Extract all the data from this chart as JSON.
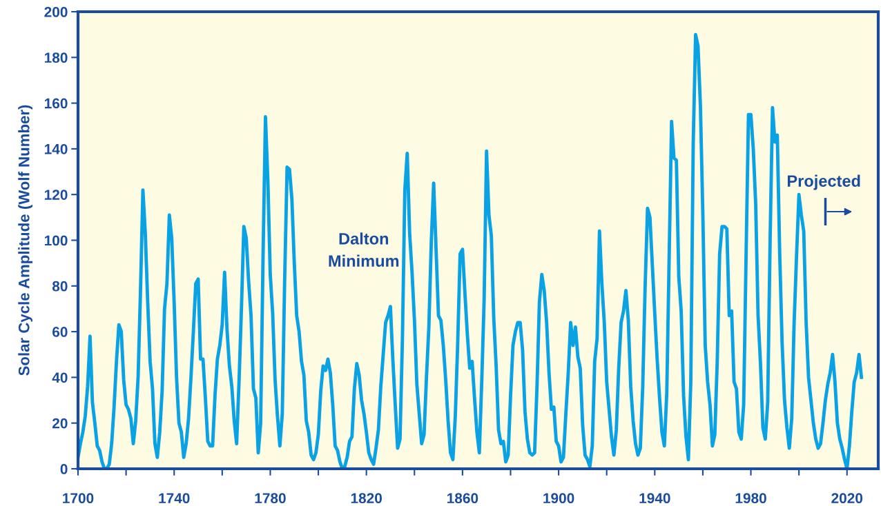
{
  "chart_data": {
    "type": "line",
    "ylabel": "Solar Cycle Amplitude (Wolf Number)",
    "x": [
      1700,
      1701,
      1702,
      1703,
      1704,
      1705,
      1706,
      1707,
      1708,
      1709,
      1710,
      1711,
      1712,
      1713,
      1714,
      1715,
      1716,
      1717,
      1718,
      1719,
      1720,
      1721,
      1722,
      1723,
      1724,
      1725,
      1726,
      1727,
      1728,
      1729,
      1730,
      1731,
      1732,
      1733,
      1734,
      1735,
      1736,
      1737,
      1738,
      1739,
      1740,
      1741,
      1742,
      1743,
      1744,
      1745,
      1746,
      1747,
      1748,
      1749,
      1750,
      1751,
      1752,
      1753,
      1754,
      1755,
      1756,
      1757,
      1758,
      1759,
      1760,
      1761,
      1762,
      1763,
      1764,
      1765,
      1766,
      1767,
      1768,
      1769,
      1770,
      1771,
      1772,
      1773,
      1774,
      1775,
      1776,
      1777,
      1778,
      1779,
      1780,
      1781,
      1782,
      1783,
      1784,
      1785,
      1786,
      1787,
      1788,
      1789,
      1790,
      1791,
      1792,
      1793,
      1794,
      1795,
      1796,
      1797,
      1798,
      1799,
      1800,
      1801,
      1802,
      1803,
      1804,
      1805,
      1806,
      1807,
      1808,
      1809,
      1810,
      1811,
      1812,
      1813,
      1814,
      1815,
      1816,
      1817,
      1818,
      1819,
      1820,
      1821,
      1822,
      1823,
      1824,
      1825,
      1826,
      1827,
      1828,
      1829,
      1830,
      1831,
      1832,
      1833,
      1834,
      1835,
      1836,
      1837,
      1838,
      1839,
      1840,
      1841,
      1842,
      1843,
      1844,
      1845,
      1846,
      1847,
      1848,
      1849,
      1850,
      1851,
      1852,
      1853,
      1854,
      1855,
      1856,
      1857,
      1858,
      1859,
      1860,
      1861,
      1862,
      1863,
      1864,
      1865,
      1866,
      1867,
      1868,
      1869,
      1870,
      1871,
      1872,
      1873,
      1874,
      1875,
      1876,
      1877,
      1878,
      1879,
      1880,
      1881,
      1882,
      1883,
      1884,
      1885,
      1886,
      1887,
      1888,
      1889,
      1890,
      1891,
      1892,
      1893,
      1894,
      1895,
      1896,
      1897,
      1898,
      1899,
      1900,
      1901,
      1902,
      1903,
      1904,
      1905,
      1906,
      1907,
      1908,
      1909,
      1910,
      1911,
      1912,
      1913,
      1914,
      1915,
      1916,
      1917,
      1918,
      1919,
      1920,
      1921,
      1922,
      1923,
      1924,
      1925,
      1926,
      1927,
      1928,
      1929,
      1930,
      1931,
      1932,
      1933,
      1934,
      1935,
      1936,
      1937,
      1938,
      1939,
      1940,
      1941,
      1942,
      1943,
      1944,
      1945,
      1946,
      1947,
      1948,
      1949,
      1950,
      1951,
      1952,
      1953,
      1954,
      1955,
      1956,
      1957,
      1958,
      1959,
      1960,
      1961,
      1962,
      1963,
      1964,
      1965,
      1966,
      1967,
      1968,
      1969,
      1970,
      1971,
      1972,
      1973,
      1974,
      1975,
      1976,
      1977,
      1978,
      1979,
      1980,
      1981,
      1982,
      1983,
      1984,
      1985,
      1986,
      1987,
      1988,
      1989,
      1990,
      1991,
      1992,
      1993,
      1994,
      1995,
      1996,
      1997,
      1998,
      1999,
      2000,
      2001,
      2002,
      2003,
      2004,
      2005,
      2006,
      2007,
      2008,
      2009,
      2010,
      2011,
      2012,
      2013,
      2014,
      2015,
      2016,
      2017,
      2018,
      2019,
      2020,
      2021,
      2022,
      2023,
      2024,
      2025,
      2026
    ],
    "series": [
      {
        "color": "#0aa2e2",
        "values": [
          5,
          11,
          16,
          23,
          36,
          58,
          29,
          20,
          10,
          8,
          3,
          0,
          0,
          2,
          11,
          27,
          47,
          63,
          60,
          39,
          28,
          26,
          22,
          11,
          21,
          40,
          78,
          122,
          103,
          73,
          47,
          35,
          11,
          5,
          16,
          34,
          70,
          81,
          111,
          101,
          73,
          40,
          20,
          16,
          5,
          11,
          22,
          40,
          60,
          81,
          83,
          48,
          48,
          31,
          12,
          10,
          10,
          32,
          48,
          54,
          63,
          86,
          61,
          45,
          36,
          21,
          11,
          38,
          70,
          106,
          101,
          82,
          67,
          35,
          31,
          7,
          20,
          93,
          154,
          126,
          85,
          68,
          39,
          23,
          10,
          24,
          83,
          132,
          131,
          118,
          90,
          67,
          60,
          47,
          41,
          21,
          16,
          6,
          4,
          7,
          15,
          34,
          45,
          43,
          48,
          42,
          28,
          10,
          8,
          3,
          0,
          1,
          5,
          12,
          14,
          35,
          46,
          41,
          30,
          24,
          16,
          7,
          4,
          2,
          9,
          17,
          36,
          50,
          64,
          67,
          71,
          48,
          28,
          9,
          13,
          57,
          122,
          138,
          103,
          86,
          65,
          37,
          24,
          11,
          15,
          40,
          62,
          99,
          125,
          96,
          67,
          65,
          54,
          39,
          21,
          7,
          4,
          23,
          55,
          94,
          96,
          77,
          59,
          44,
          47,
          31,
          16,
          7,
          38,
          74,
          139,
          111,
          102,
          66,
          45,
          17,
          11,
          12,
          3,
          6,
          32,
          54,
          60,
          64,
          64,
          52,
          25,
          13,
          7,
          6,
          7,
          36,
          73,
          85,
          78,
          64,
          42,
          26,
          27,
          12,
          10,
          3,
          5,
          24,
          42,
          64,
          54,
          62,
          49,
          44,
          19,
          6,
          4,
          1,
          10,
          47,
          57,
          104,
          81,
          64,
          38,
          26,
          14,
          6,
          17,
          44,
          64,
          69,
          78,
          65,
          36,
          21,
          11,
          6,
          9,
          36,
          80,
          114,
          110,
          89,
          68,
          48,
          31,
          16,
          10,
          33,
          93,
          152,
          136,
          135,
          84,
          69,
          32,
          14,
          4,
          38,
          142,
          190,
          185,
          159,
          112,
          54,
          38,
          28,
          10,
          15,
          47,
          94,
          106,
          106,
          105,
          67,
          69,
          38,
          35,
          16,
          13,
          28,
          93,
          155,
          155,
          140,
          116,
          67,
          46,
          18,
          13,
          29,
          100,
          158,
          143,
          146,
          94,
          55,
          30,
          18,
          9,
          22,
          64,
          93,
          120,
          111,
          104,
          64,
          40,
          30,
          20,
          13,
          9,
          11,
          20,
          30,
          37,
          42,
          50,
          38,
          20,
          13,
          9,
          4,
          0,
          10,
          25,
          38,
          42,
          50,
          40
        ]
      }
    ],
    "xlim": [
      1700,
      2033
    ],
    "ylim": [
      0,
      200
    ],
    "xticks": [
      1700,
      {
        "value": 1720,
        "label": null
      },
      1740,
      {
        "value": 1760,
        "label": null
      },
      1780,
      {
        "value": 1800,
        "label": null
      },
      1820,
      {
        "value": 1840,
        "label": null
      },
      1860,
      {
        "value": 1880,
        "label": null
      },
      1900,
      {
        "value": 1920,
        "label": null
      },
      1940,
      {
        "value": 1960,
        "label": null
      },
      1980,
      {
        "value": 2000,
        "label": null
      },
      2020
    ],
    "yticks": [
      0,
      20,
      40,
      60,
      80,
      100,
      120,
      140,
      160,
      180,
      200
    ],
    "annotations": [
      "Dalton\nMinimum",
      "Projected"
    ],
    "grid": false,
    "marker": "none",
    "line_style": "solid"
  }
}
